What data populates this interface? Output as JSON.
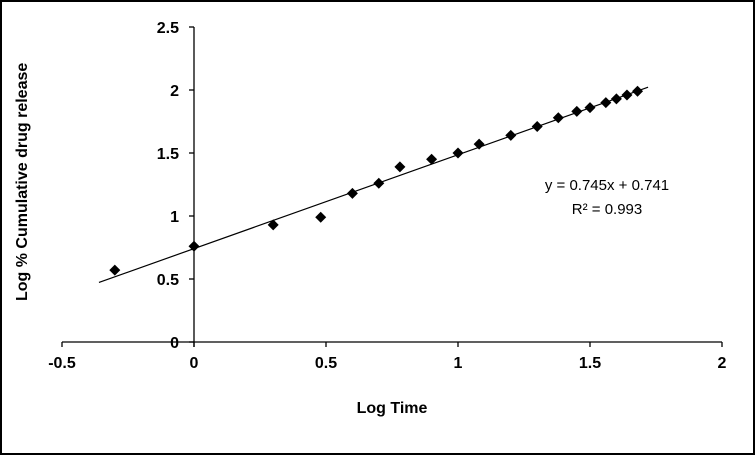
{
  "chart_data": {
    "type": "scatter",
    "title": "",
    "xlabel": "Log Time",
    "ylabel": "Log % Cumulative drug release",
    "xlim": [
      -0.5,
      2
    ],
    "ylim": [
      0,
      2.5
    ],
    "xticks": [
      -0.5,
      0,
      0.5,
      1,
      1.5,
      2
    ],
    "yticks": [
      0,
      0.5,
      1,
      1.5,
      2,
      2.5
    ],
    "xtick_labels": [
      "-0.5",
      "0",
      "0.5",
      "1",
      "1.5",
      "2"
    ],
    "ytick_labels": [
      "0",
      "0.5",
      "1",
      "1.5",
      "2",
      "2.5"
    ],
    "grid": false,
    "legend": false,
    "marker": "diamond",
    "marker_color": "#000000",
    "axis_color": "#000000",
    "points": [
      [
        -0.3,
        0.57
      ],
      [
        0.0,
        0.76
      ],
      [
        0.3,
        0.93
      ],
      [
        0.48,
        0.99
      ],
      [
        0.6,
        1.18
      ],
      [
        0.7,
        1.26
      ],
      [
        0.78,
        1.39
      ],
      [
        0.9,
        1.45
      ],
      [
        1.0,
        1.5
      ],
      [
        1.08,
        1.57
      ],
      [
        1.2,
        1.64
      ],
      [
        1.3,
        1.71
      ],
      [
        1.38,
        1.78
      ],
      [
        1.45,
        1.83
      ],
      [
        1.5,
        1.86
      ],
      [
        1.56,
        1.9
      ],
      [
        1.6,
        1.93
      ],
      [
        1.64,
        1.96
      ],
      [
        1.68,
        1.99
      ]
    ],
    "trendline": {
      "slope": 0.745,
      "intercept": 0.741,
      "x_start": -0.36,
      "x_end": 1.72,
      "color": "#000000"
    },
    "annotation": {
      "equation": "y = 0.745x + 0.741",
      "r_squared": "R² = 0.993"
    }
  }
}
